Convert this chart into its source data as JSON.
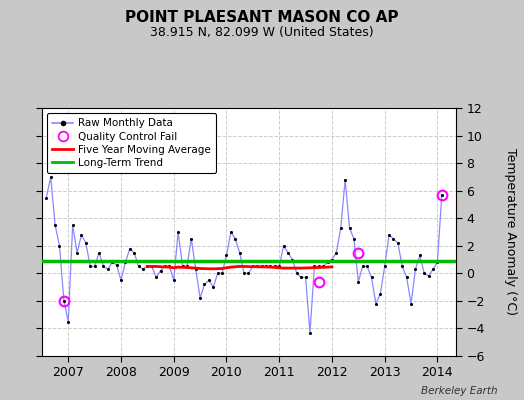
{
  "title": "POINT PLAESANT MASON CO AP",
  "subtitle": "38.915 N, 82.099 W (United States)",
  "credit": "Berkeley Earth",
  "ylabel": "Temperature Anomaly (°C)",
  "ylim": [
    -6,
    12
  ],
  "yticks": [
    -6,
    -4,
    -2,
    0,
    2,
    4,
    6,
    8,
    10,
    12
  ],
  "xlim_start": 2006.5,
  "xlim_end": 2014.35,
  "background_color": "#c8c8c8",
  "plot_bg_color": "#ffffff",
  "raw_color": "#8888ff",
  "dot_color": "#000000",
  "qc_fail_color": "#ff00ff",
  "moving_avg_color": "#ff0000",
  "trend_color": "#00bb00",
  "trend_value": 0.9,
  "raw_data": [
    [
      2006.583,
      5.5
    ],
    [
      2006.667,
      7.0
    ],
    [
      2006.75,
      3.5
    ],
    [
      2006.833,
      2.0
    ],
    [
      2006.917,
      -2.0
    ],
    [
      2007.0,
      -3.5
    ],
    [
      2007.083,
      3.5
    ],
    [
      2007.167,
      1.5
    ],
    [
      2007.25,
      2.8
    ],
    [
      2007.333,
      2.2
    ],
    [
      2007.417,
      0.5
    ],
    [
      2007.5,
      0.5
    ],
    [
      2007.583,
      1.5
    ],
    [
      2007.667,
      0.5
    ],
    [
      2007.75,
      0.3
    ],
    [
      2007.833,
      0.8
    ],
    [
      2007.917,
      0.6
    ],
    [
      2008.0,
      -0.5
    ],
    [
      2008.083,
      0.8
    ],
    [
      2008.167,
      1.8
    ],
    [
      2008.25,
      1.5
    ],
    [
      2008.333,
      0.5
    ],
    [
      2008.417,
      0.3
    ],
    [
      2008.5,
      0.5
    ],
    [
      2008.583,
      0.5
    ],
    [
      2008.667,
      -0.3
    ],
    [
      2008.75,
      0.2
    ],
    [
      2008.833,
      0.5
    ],
    [
      2008.917,
      0.5
    ],
    [
      2009.0,
      -0.5
    ],
    [
      2009.083,
      3.0
    ],
    [
      2009.167,
      0.5
    ],
    [
      2009.25,
      0.5
    ],
    [
      2009.333,
      2.5
    ],
    [
      2009.417,
      0.3
    ],
    [
      2009.5,
      -1.8
    ],
    [
      2009.583,
      -0.8
    ],
    [
      2009.667,
      -0.5
    ],
    [
      2009.75,
      -1.0
    ],
    [
      2009.833,
      0.0
    ],
    [
      2009.917,
      0.0
    ],
    [
      2010.0,
      1.3
    ],
    [
      2010.083,
      3.0
    ],
    [
      2010.167,
      2.5
    ],
    [
      2010.25,
      1.5
    ],
    [
      2010.333,
      0.0
    ],
    [
      2010.417,
      0.0
    ],
    [
      2010.5,
      0.5
    ],
    [
      2010.583,
      0.5
    ],
    [
      2010.667,
      0.5
    ],
    [
      2010.75,
      0.5
    ],
    [
      2010.833,
      0.5
    ],
    [
      2010.917,
      0.5
    ],
    [
      2011.0,
      0.5
    ],
    [
      2011.083,
      2.0
    ],
    [
      2011.167,
      1.5
    ],
    [
      2011.25,
      1.0
    ],
    [
      2011.333,
      0.0
    ],
    [
      2011.417,
      -0.3
    ],
    [
      2011.5,
      -0.3
    ],
    [
      2011.583,
      -4.3
    ],
    [
      2011.667,
      0.5
    ],
    [
      2011.75,
      0.5
    ],
    [
      2011.833,
      0.5
    ],
    [
      2011.917,
      0.8
    ],
    [
      2012.0,
      1.0
    ],
    [
      2012.083,
      1.5
    ],
    [
      2012.167,
      3.3
    ],
    [
      2012.25,
      6.8
    ],
    [
      2012.333,
      3.3
    ],
    [
      2012.417,
      2.5
    ],
    [
      2012.5,
      -0.6
    ],
    [
      2012.583,
      0.5
    ],
    [
      2012.667,
      0.5
    ],
    [
      2012.75,
      -0.3
    ],
    [
      2012.833,
      -2.2
    ],
    [
      2012.917,
      -1.5
    ],
    [
      2013.0,
      0.5
    ],
    [
      2013.083,
      2.8
    ],
    [
      2013.167,
      2.5
    ],
    [
      2013.25,
      2.2
    ],
    [
      2013.333,
      0.5
    ],
    [
      2013.417,
      -0.3
    ],
    [
      2013.5,
      -2.2
    ],
    [
      2013.583,
      0.3
    ],
    [
      2013.667,
      1.3
    ],
    [
      2013.75,
      0.0
    ],
    [
      2013.833,
      -0.2
    ],
    [
      2013.917,
      0.3
    ],
    [
      2014.0,
      0.8
    ],
    [
      2014.083,
      5.7
    ]
  ],
  "qc_fail_points": [
    [
      2006.917,
      -2.0
    ],
    [
      2011.75,
      -0.6
    ],
    [
      2012.5,
      1.5
    ],
    [
      2014.083,
      5.7
    ]
  ],
  "moving_avg": [
    [
      2008.5,
      0.5
    ],
    [
      2008.667,
      0.5
    ],
    [
      2008.75,
      0.48
    ],
    [
      2008.917,
      0.45
    ],
    [
      2009.0,
      0.4
    ],
    [
      2009.083,
      0.45
    ],
    [
      2009.25,
      0.42
    ],
    [
      2009.417,
      0.38
    ],
    [
      2009.5,
      0.35
    ],
    [
      2009.667,
      0.33
    ],
    [
      2009.75,
      0.33
    ],
    [
      2009.917,
      0.35
    ],
    [
      2010.0,
      0.4
    ],
    [
      2010.083,
      0.45
    ],
    [
      2010.25,
      0.5
    ],
    [
      2010.333,
      0.5
    ],
    [
      2010.5,
      0.48
    ],
    [
      2010.667,
      0.47
    ],
    [
      2010.833,
      0.45
    ],
    [
      2010.917,
      0.43
    ],
    [
      2011.0,
      0.4
    ],
    [
      2011.083,
      0.38
    ],
    [
      2011.25,
      0.38
    ],
    [
      2011.417,
      0.38
    ],
    [
      2011.583,
      0.4
    ],
    [
      2011.75,
      0.42
    ],
    [
      2011.917,
      0.45
    ],
    [
      2012.0,
      0.47
    ]
  ],
  "xtick_years": [
    2007,
    2008,
    2009,
    2010,
    2011,
    2012,
    2013,
    2014
  ]
}
